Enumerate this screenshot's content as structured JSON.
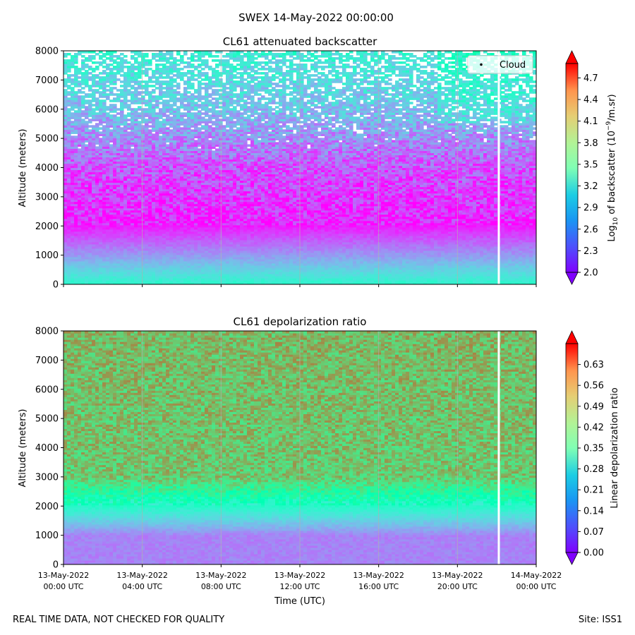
{
  "suptitle": "SWEX 14-May-2022 00:00:00",
  "footer_left": "REAL TIME DATA, NOT CHECKED FOR QUALITY",
  "footer_right": "Site: ISS1",
  "chart_data": [
    {
      "type": "heatmap",
      "title": "CL61 attenuated backscatter",
      "xlabel": "",
      "ylabel": "Altitude (meters)",
      "ylim": [
        0,
        8000
      ],
      "yticks": [
        "0",
        "1000",
        "2000",
        "3000",
        "4000",
        "5000",
        "6000",
        "7000",
        "8000"
      ],
      "xlim": [
        "13-May-2022 00:00 UTC",
        "14-May-2022 00:00 UTC"
      ],
      "x_tick_labels_shown": false,
      "colormap": "rainbow",
      "colorbar": {
        "label": "Log10 of backscatter (10^-9/m.sr)",
        "range": [
          2.0,
          4.9
        ],
        "ticks": [
          "2.0",
          "2.3",
          "2.6",
          "2.9",
          "3.2",
          "3.5",
          "3.8",
          "4.1",
          "4.4",
          "4.7"
        ],
        "extend": "both"
      },
      "legend": {
        "entries": [
          "Cloud"
        ],
        "placement": "top-right"
      },
      "vertical_gaps_hours": [
        22.1
      ],
      "profile_note": [
        {
          "altitude_m": 0,
          "value": 3.2
        },
        {
          "altitude_m": 1000,
          "value": 2.6
        },
        {
          "altitude_m": 2000,
          "value": 2.1
        },
        {
          "altitude_m": 4000,
          "value": 2.3
        },
        {
          "altitude_m": 6000,
          "value": 2.8
        },
        {
          "altitude_m": 8000,
          "value": 3.1
        }
      ]
    },
    {
      "type": "heatmap",
      "title": "CL61 depolarization ratio",
      "xlabel": "Time (UTC)",
      "ylabel": "Altitude (meters)",
      "ylim": [
        0,
        8000
      ],
      "yticks": [
        "0",
        "1000",
        "2000",
        "3000",
        "4000",
        "5000",
        "6000",
        "7000",
        "8000"
      ],
      "xticks": [
        {
          "hour": 0,
          "line1": "13-May-2022",
          "line2": "00:00 UTC"
        },
        {
          "hour": 4,
          "line1": "13-May-2022",
          "line2": "04:00 UTC"
        },
        {
          "hour": 8,
          "line1": "13-May-2022",
          "line2": "08:00 UTC"
        },
        {
          "hour": 12,
          "line1": "13-May-2022",
          "line2": "12:00 UTC"
        },
        {
          "hour": 16,
          "line1": "13-May-2022",
          "line2": "16:00 UTC"
        },
        {
          "hour": 20,
          "line1": "13-May-2022",
          "line2": "20:00 UTC"
        },
        {
          "hour": 24,
          "line1": "14-May-2022",
          "line2": "00:00 UTC"
        }
      ],
      "colormap": "rainbow",
      "colorbar": {
        "label": "Linear depolarization ratio",
        "range": [
          0.0,
          0.7
        ],
        "ticks": [
          "0.00",
          "0.07",
          "0.14",
          "0.21",
          "0.28",
          "0.35",
          "0.42",
          "0.49",
          "0.56",
          "0.63"
        ],
        "extend": "both"
      },
      "vertical_gaps_hours": [
        22.1
      ],
      "profile_note": [
        {
          "altitude_m": 0,
          "value": 0.12
        },
        {
          "altitude_m": 1000,
          "value": 0.12
        },
        {
          "altitude_m": 2000,
          "value": 0.3
        },
        {
          "altitude_m": 3000,
          "value": 0.5
        },
        {
          "altitude_m": 8000,
          "value": 0.52
        }
      ]
    }
  ]
}
